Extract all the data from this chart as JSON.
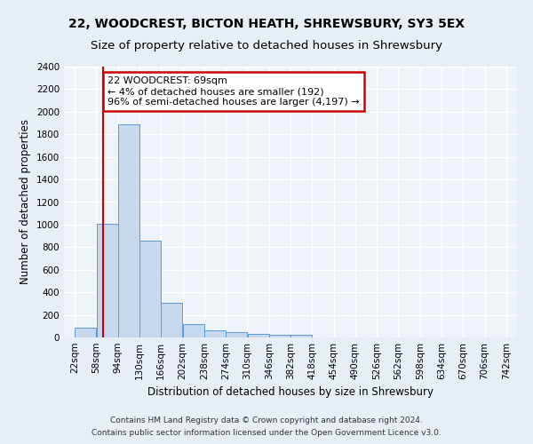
{
  "title_line1": "22, WOODCREST, BICTON HEATH, SHREWSBURY, SY3 5EX",
  "title_line2": "Size of property relative to detached houses in Shrewsbury",
  "xlabel": "Distribution of detached houses by size in Shrewsbury",
  "ylabel": "Number of detached properties",
  "bin_edges": [
    22,
    58,
    94,
    130,
    166,
    202,
    238,
    274,
    310,
    346,
    382,
    418,
    454,
    490,
    526,
    562,
    598,
    634,
    670,
    706,
    742
  ],
  "bar_heights": [
    90,
    1010,
    1890,
    860,
    310,
    115,
    60,
    50,
    35,
    20,
    20,
    0,
    0,
    0,
    0,
    0,
    0,
    0,
    0,
    0
  ],
  "bar_color": "#c5d8ee",
  "bar_edgecolor": "#5b9bd5",
  "property_size": 69,
  "vline_color": "#cc0000",
  "annotation_text": "22 WOODCREST: 69sqm\n← 4% of detached houses are smaller (192)\n96% of semi-detached houses are larger (4,197) →",
  "annotation_boxcolor": "white",
  "annotation_edgecolor": "#cc0000",
  "ylim": [
    0,
    2400
  ],
  "yticks": [
    0,
    200,
    400,
    600,
    800,
    1000,
    1200,
    1400,
    1600,
    1800,
    2000,
    2200,
    2400
  ],
  "footer_line1": "Contains HM Land Registry data © Crown copyright and database right 2024.",
  "footer_line2": "Contains public sector information licensed under the Open Government Licence v3.0.",
  "bg_color": "#e8eef6",
  "plot_bg_color": "#eef3fa",
  "grid_color": "#ffffff",
  "title_fontsize": 10,
  "subtitle_fontsize": 9.5,
  "axis_label_fontsize": 8.5,
  "tick_fontsize": 7.5,
  "annotation_fontsize": 8,
  "footer_fontsize": 6.5
}
